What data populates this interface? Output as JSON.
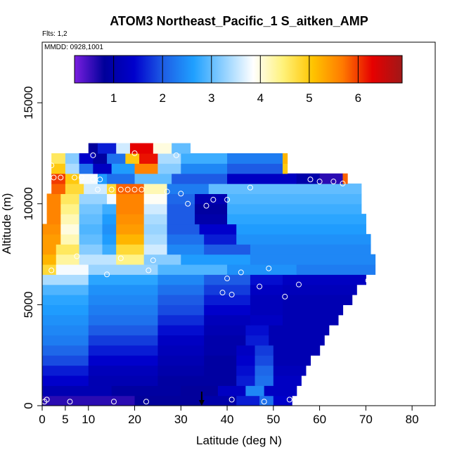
{
  "chart_data": {
    "type": "heatmap",
    "title": "ATOM3 Northeast_Pacific_1 S_aitken_AMP",
    "annotations": [
      "Flts: 1,2",
      "MMDD: 0928,1001"
    ],
    "xlabel": "Latitude (deg N)",
    "ylabel": "Altitude (m)",
    "xlim": [
      0,
      85
    ],
    "ylim": [
      0,
      18000
    ],
    "x_ticks": [
      0,
      5,
      10,
      20,
      30,
      40,
      50,
      60,
      70,
      80
    ],
    "y_ticks": [
      0,
      5000,
      10000,
      15000
    ],
    "colorbar": {
      "range": [
        0.2,
        6.9
      ],
      "ticks": [
        1,
        2,
        3,
        4,
        5,
        6
      ],
      "stops": [
        "#7a1fe0",
        "#00009a",
        "#0000cc",
        "#1e5fe6",
        "#1fa0ff",
        "#8fd0ff",
        "#ffffff",
        "#fff27a",
        "#ffc400",
        "#ff7a00",
        "#e60000",
        "#a01818"
      ]
    },
    "layers": [
      {
        "alt": 0,
        "segments": [
          [
            0,
            20,
            0.6
          ],
          [
            20,
            35,
            0.8
          ],
          [
            35,
            42,
            1.0
          ],
          [
            42,
            47,
            1.6
          ],
          [
            47,
            50,
            2.2
          ],
          [
            50,
            54,
            1.4
          ]
        ]
      },
      {
        "alt": 500,
        "segments": [
          [
            0,
            15,
            1.1
          ],
          [
            15,
            30,
            0.9
          ],
          [
            30,
            38,
            0.8
          ],
          [
            38,
            44,
            1.3
          ],
          [
            44,
            48,
            2.4
          ],
          [
            48,
            55,
            1.3
          ]
        ]
      },
      {
        "alt": 1000,
        "segments": [
          [
            0,
            10,
            1.4
          ],
          [
            10,
            25,
            1.1
          ],
          [
            25,
            35,
            0.9
          ],
          [
            35,
            42,
            0.9
          ],
          [
            42,
            46,
            1.6
          ],
          [
            46,
            50,
            2.2
          ],
          [
            50,
            56,
            1.3
          ]
        ]
      },
      {
        "alt": 1500,
        "segments": [
          [
            0,
            10,
            1.6
          ],
          [
            10,
            25,
            1.2
          ],
          [
            25,
            35,
            1.0
          ],
          [
            35,
            42,
            0.9
          ],
          [
            42,
            46,
            1.5
          ],
          [
            46,
            50,
            2.1
          ],
          [
            50,
            57,
            1.2
          ]
        ]
      },
      {
        "alt": 2000,
        "segments": [
          [
            0,
            10,
            1.9
          ],
          [
            10,
            25,
            1.4
          ],
          [
            25,
            35,
            1.1
          ],
          [
            35,
            42,
            0.9
          ],
          [
            42,
            46,
            1.4
          ],
          [
            46,
            50,
            1.9
          ],
          [
            50,
            58,
            1.1
          ]
        ]
      },
      {
        "alt": 2500,
        "segments": [
          [
            0,
            10,
            2.1
          ],
          [
            10,
            25,
            1.6
          ],
          [
            25,
            35,
            1.2
          ],
          [
            35,
            42,
            1.0
          ],
          [
            42,
            46,
            1.3
          ],
          [
            46,
            50,
            1.8
          ],
          [
            50,
            60,
            1.1
          ]
        ]
      },
      {
        "alt": 3000,
        "segments": [
          [
            0,
            10,
            2.3
          ],
          [
            10,
            25,
            1.8
          ],
          [
            25,
            35,
            1.3
          ],
          [
            35,
            44,
            1.0
          ],
          [
            44,
            49,
            1.6
          ],
          [
            49,
            61,
            1.1
          ]
        ]
      },
      {
        "alt": 3500,
        "segments": [
          [
            0,
            10,
            2.4
          ],
          [
            10,
            25,
            2.0
          ],
          [
            25,
            35,
            1.5
          ],
          [
            35,
            44,
            1.1
          ],
          [
            44,
            49,
            1.5
          ],
          [
            49,
            62,
            1.1
          ]
        ]
      },
      {
        "alt": 4000,
        "segments": [
          [
            0,
            10,
            2.5
          ],
          [
            10,
            25,
            2.2
          ],
          [
            25,
            35,
            1.7
          ],
          [
            35,
            45,
            1.2
          ],
          [
            45,
            52,
            1.3
          ],
          [
            52,
            64,
            1.1
          ]
        ]
      },
      {
        "alt": 4500,
        "segments": [
          [
            0,
            10,
            2.6
          ],
          [
            10,
            25,
            2.3
          ],
          [
            25,
            35,
            1.9
          ],
          [
            35,
            45,
            1.4
          ],
          [
            45,
            52,
            1.2
          ],
          [
            52,
            65,
            1.1
          ]
        ]
      },
      {
        "alt": 5000,
        "segments": [
          [
            0,
            10,
            2.7
          ],
          [
            10,
            25,
            2.4
          ],
          [
            25,
            35,
            2.0
          ],
          [
            35,
            45,
            1.6
          ],
          [
            45,
            52,
            1.2
          ],
          [
            52,
            67,
            1.1
          ]
        ]
      },
      {
        "alt": 5500,
        "segments": [
          [
            0,
            10,
            2.9
          ],
          [
            10,
            25,
            2.5
          ],
          [
            25,
            35,
            2.2
          ],
          [
            35,
            45,
            1.8
          ],
          [
            45,
            52,
            1.3
          ],
          [
            52,
            68,
            1.2
          ]
        ]
      },
      {
        "alt": 6000,
        "segments": [
          [
            0,
            10,
            3.4
          ],
          [
            10,
            25,
            2.7
          ],
          [
            25,
            35,
            2.4
          ],
          [
            35,
            45,
            2.0
          ],
          [
            45,
            52,
            1.5
          ],
          [
            52,
            70,
            1.3
          ]
        ]
      },
      {
        "alt": 6500,
        "segments": [
          [
            0,
            3,
            4.8
          ],
          [
            3,
            10,
            3.8
          ],
          [
            10,
            25,
            3.3
          ],
          [
            25,
            40,
            2.9
          ],
          [
            40,
            55,
            2.5
          ],
          [
            55,
            72,
            2.3
          ]
        ]
      },
      {
        "alt": 7000,
        "segments": [
          [
            0,
            3,
            5.2
          ],
          [
            3,
            8,
            4.3
          ],
          [
            8,
            16,
            3.5
          ],
          [
            16,
            22,
            4.4
          ],
          [
            22,
            30,
            3.2
          ],
          [
            30,
            45,
            2.6
          ],
          [
            45,
            72,
            2.4
          ]
        ]
      },
      {
        "alt": 7500,
        "segments": [
          [
            0,
            3,
            5.4
          ],
          [
            3,
            8,
            4.6
          ],
          [
            8,
            13,
            3.2
          ],
          [
            13,
            16,
            2.8
          ],
          [
            16,
            22,
            4.8
          ],
          [
            22,
            27,
            3.6
          ],
          [
            27,
            35,
            2.4
          ],
          [
            35,
            45,
            2.0
          ],
          [
            45,
            71,
            2.4
          ]
        ]
      },
      {
        "alt": 8000,
        "segments": [
          [
            0,
            4,
            5.4
          ],
          [
            4,
            8,
            4.2
          ],
          [
            8,
            13,
            3.0
          ],
          [
            13,
            16,
            2.6
          ],
          [
            16,
            22,
            5.2
          ],
          [
            22,
            27,
            3.4
          ],
          [
            27,
            35,
            2.2
          ],
          [
            35,
            42,
            1.6
          ],
          [
            42,
            71,
            2.5
          ]
        ]
      },
      {
        "alt": 8500,
        "segments": [
          [
            0,
            4,
            5.5
          ],
          [
            4,
            8,
            4.0
          ],
          [
            8,
            13,
            2.9
          ],
          [
            13,
            16,
            2.5
          ],
          [
            16,
            22,
            5.4
          ],
          [
            22,
            27,
            3.3
          ],
          [
            27,
            34,
            2.0
          ],
          [
            34,
            42,
            1.4
          ],
          [
            42,
            70,
            2.6
          ]
        ]
      },
      {
        "alt": 9000,
        "segments": [
          [
            1,
            4,
            5.6
          ],
          [
            4,
            8,
            4.2
          ],
          [
            8,
            13,
            3.0
          ],
          [
            13,
            16,
            2.6
          ],
          [
            16,
            22,
            5.5
          ],
          [
            22,
            27,
            3.4
          ],
          [
            27,
            33,
            2.0
          ],
          [
            33,
            40,
            1.0
          ],
          [
            40,
            70,
            2.7
          ]
        ]
      },
      {
        "alt": 9500,
        "segments": [
          [
            1,
            4,
            5.6
          ],
          [
            4,
            8,
            4.4
          ],
          [
            8,
            13,
            3.1
          ],
          [
            13,
            16,
            2.8
          ],
          [
            16,
            22,
            5.6
          ],
          [
            22,
            27,
            3.6
          ],
          [
            27,
            33,
            2.0
          ],
          [
            33,
            40,
            0.9
          ],
          [
            40,
            69,
            2.8
          ]
        ]
      },
      {
        "alt": 10000,
        "segments": [
          [
            1,
            4,
            5.6
          ],
          [
            4,
            8,
            4.6
          ],
          [
            8,
            14,
            3.3
          ],
          [
            14,
            16,
            3.8
          ],
          [
            16,
            22,
            5.6
          ],
          [
            22,
            27,
            3.9
          ],
          [
            27,
            33,
            2.1
          ],
          [
            33,
            40,
            1.1
          ],
          [
            40,
            69,
            2.9
          ]
        ]
      },
      {
        "alt": 10500,
        "segments": [
          [
            2,
            5,
            5.8
          ],
          [
            5,
            9,
            4.8
          ],
          [
            9,
            14,
            3.6
          ],
          [
            14,
            16,
            4.8
          ],
          [
            16,
            22,
            5.8
          ],
          [
            22,
            27,
            4.2
          ],
          [
            27,
            36,
            2.3
          ],
          [
            36,
            69,
            3.0
          ]
        ]
      },
      {
        "alt": 11000,
        "segments": [
          [
            2,
            5,
            6.0
          ],
          [
            5,
            8,
            5.0
          ],
          [
            8,
            12,
            3.8
          ],
          [
            12,
            14,
            2.6
          ],
          [
            14,
            20,
            2.2
          ],
          [
            20,
            28,
            3.0
          ],
          [
            28,
            40,
            2.0
          ],
          [
            40,
            55,
            1.3
          ],
          [
            55,
            60,
            1.0
          ],
          [
            60,
            65,
            0.6
          ],
          [
            65,
            66,
            5.8
          ]
        ]
      },
      {
        "alt": 11500,
        "segments": [
          [
            2,
            5,
            5.0
          ],
          [
            5,
            8,
            3.4
          ],
          [
            8,
            11,
            2.2
          ],
          [
            11,
            15,
            1.3
          ],
          [
            15,
            20,
            2.6
          ],
          [
            20,
            25,
            5.6
          ],
          [
            25,
            30,
            3.2
          ],
          [
            30,
            40,
            2.4
          ],
          [
            40,
            52,
            2.0
          ],
          [
            52,
            53,
            5.0
          ]
        ]
      },
      {
        "alt": 12000,
        "segments": [
          [
            2,
            5,
            4.6
          ],
          [
            5,
            8,
            3.2
          ],
          [
            8,
            11,
            1.4
          ],
          [
            11,
            14,
            0.9
          ],
          [
            14,
            18,
            2.2
          ],
          [
            18,
            21,
            5.0
          ],
          [
            21,
            25,
            6.2
          ],
          [
            25,
            30,
            3.4
          ],
          [
            30,
            40,
            2.8
          ],
          [
            40,
            52,
            2.3
          ],
          [
            52,
            53,
            5.2
          ]
        ]
      },
      {
        "alt": 12500,
        "segments": [
          [
            10,
            12,
            0.8
          ],
          [
            12,
            16,
            1.6
          ],
          [
            16,
            19,
            3.6
          ],
          [
            19,
            24,
            6.3
          ],
          [
            24,
            28,
            4.0
          ],
          [
            28,
            32,
            3.0
          ]
        ]
      }
    ],
    "observations": [
      [
        0.5,
        200
      ],
      [
        1,
        300
      ],
      [
        6,
        200
      ],
      [
        15.5,
        200
      ],
      [
        22.5,
        200
      ],
      [
        41,
        300
      ],
      [
        48,
        200
      ],
      [
        53.5,
        300
      ],
      [
        2,
        6700
      ],
      [
        7.5,
        7400
      ],
      [
        14,
        6500
      ],
      [
        17,
        7300
      ],
      [
        23,
        6700
      ],
      [
        24,
        7200
      ],
      [
        39,
        5600
      ],
      [
        40,
        6300
      ],
      [
        41,
        5500
      ],
      [
        43,
        6600
      ],
      [
        47,
        5900
      ],
      [
        49,
        6800
      ],
      [
        52.5,
        5400
      ],
      [
        55.5,
        6000
      ],
      [
        70.5,
        6200
      ],
      [
        12,
        10700
      ],
      [
        15,
        10700
      ],
      [
        17,
        10700
      ],
      [
        18.5,
        10700
      ],
      [
        20,
        10700
      ],
      [
        21.5,
        10700
      ],
      [
        27,
        10600
      ],
      [
        30,
        10500
      ],
      [
        31.5,
        10000
      ],
      [
        35.5,
        9900
      ],
      [
        37,
        10200
      ],
      [
        40,
        10200
      ],
      [
        45,
        10800
      ],
      [
        2.5,
        11300
      ],
      [
        4,
        11300
      ],
      [
        7,
        11300
      ],
      [
        8.5,
        11300
      ],
      [
        11,
        11200
      ],
      [
        12.5,
        11200
      ],
      [
        58,
        11200
      ],
      [
        60,
        11100
      ],
      [
        63,
        11100
      ],
      [
        65,
        11000
      ],
      [
        2,
        11900
      ],
      [
        11,
        12400
      ],
      [
        20,
        12500
      ],
      [
        29,
        12400
      ]
    ],
    "marker": {
      "x": 34.5,
      "y": 0
    }
  }
}
